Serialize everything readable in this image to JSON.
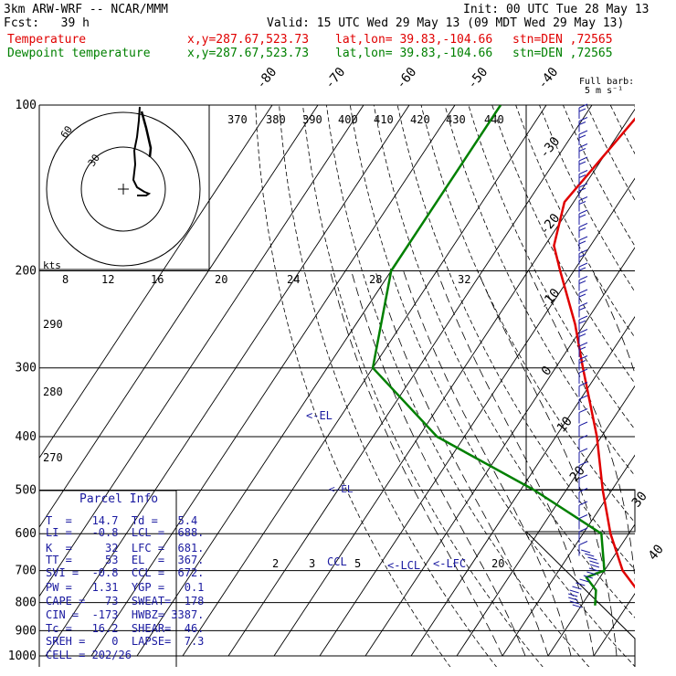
{
  "header": {
    "model": "3km ARW-WRF -- NCAR/MMM",
    "init": "Init: 00 UTC Tue 28 May 13",
    "fcst": "Fcst:   39 h",
    "valid": "Valid: 15 UTC Wed 29 May 13 (09 MDT Wed 29 May 13)",
    "temp_label": "Temperature",
    "dew_label": "Dewpoint temperature",
    "xy": "x,y=287.67,523.73",
    "latlon": "lat,lon= 39.83,-104.66",
    "stn": "stn=DEN ,72565",
    "barb_title": "Full barb:",
    "barb_units": "5 m s⁻¹"
  },
  "colors": {
    "temperature": "#e00000",
    "dewpoint": "#008000",
    "parcel": "#1a1aa0",
    "grid": "#000000"
  },
  "chart_data": {
    "type": "line",
    "pressure_levels": [
      "100",
      "200",
      "300",
      "400",
      "500",
      "600",
      "700",
      "800",
      "900",
      "1000"
    ],
    "isotherm_labels": [
      "-80",
      "-70",
      "-60",
      "-50",
      "-40",
      "-30",
      "-20",
      "-10",
      "0",
      "10",
      "20",
      "30",
      "40"
    ],
    "theta_labels": [
      "370",
      "380",
      "390",
      "400",
      "410",
      "420",
      "430",
      "440"
    ],
    "theta_side_labels": [
      "290",
      "280",
      "270"
    ],
    "mixing_ratio_labels": [
      "2",
      "3",
      "5",
      "8",
      "12",
      "16",
      "20",
      "24",
      "28",
      "32"
    ],
    "hodograph": {
      "unit": "kts",
      "ring_labels": [
        "30",
        "60"
      ]
    },
    "temperature": {
      "name": "Temperature",
      "points": [
        {
          "p": 100,
          "t": -58
        },
        {
          "p": 150,
          "t": -62
        },
        {
          "p": 180,
          "t": -58
        },
        {
          "p": 200,
          "t": -53
        },
        {
          "p": 250,
          "t": -42
        },
        {
          "p": 300,
          "t": -34
        },
        {
          "p": 400,
          "t": -21
        },
        {
          "p": 500,
          "t": -12
        },
        {
          "p": 600,
          "t": -4
        },
        {
          "p": 700,
          "t": 4
        },
        {
          "p": 780,
          "t": 12
        },
        {
          "p": 825,
          "t": 15
        }
      ]
    },
    "dewpoint": {
      "name": "Dewpoint temperature",
      "points": [
        {
          "p": 100,
          "t": -90
        },
        {
          "p": 200,
          "t": -90
        },
        {
          "p": 300,
          "t": -80
        },
        {
          "p": 400,
          "t": -56
        },
        {
          "p": 500,
          "t": -27
        },
        {
          "p": 600,
          "t": -6
        },
        {
          "p": 700,
          "t": 0
        },
        {
          "p": 720,
          "t": -3
        },
        {
          "p": 760,
          "t": 1
        },
        {
          "p": 810,
          "t": 3
        }
      ]
    },
    "levels": {
      "el": "<-EL",
      "el_low": "<-EL",
      "lfc": "<-LFC",
      "ccl": "CCL",
      "lcl_mark": "<-LCL"
    },
    "parcel_info": {
      "title": "Parcel Info",
      "rows": [
        "T  =   14.7  Td =   5.4",
        "LI =   -0.8  LCL =  688.",
        "K  =     32  LFC =  681.",
        "TT =     53  EL  =  367.",
        "SVI =  -0.8  CCL =  672.",
        "PW =   1.31  YGP =   0.1",
        "CAPE =   73  SWEAT=  178",
        "CIN =  -173  HWBZ= 3387.",
        "Tc =   16.2  SHEAR=  46.",
        "SREH =    0  LAPSE=  7.3",
        "CELL = 202/26"
      ]
    }
  }
}
